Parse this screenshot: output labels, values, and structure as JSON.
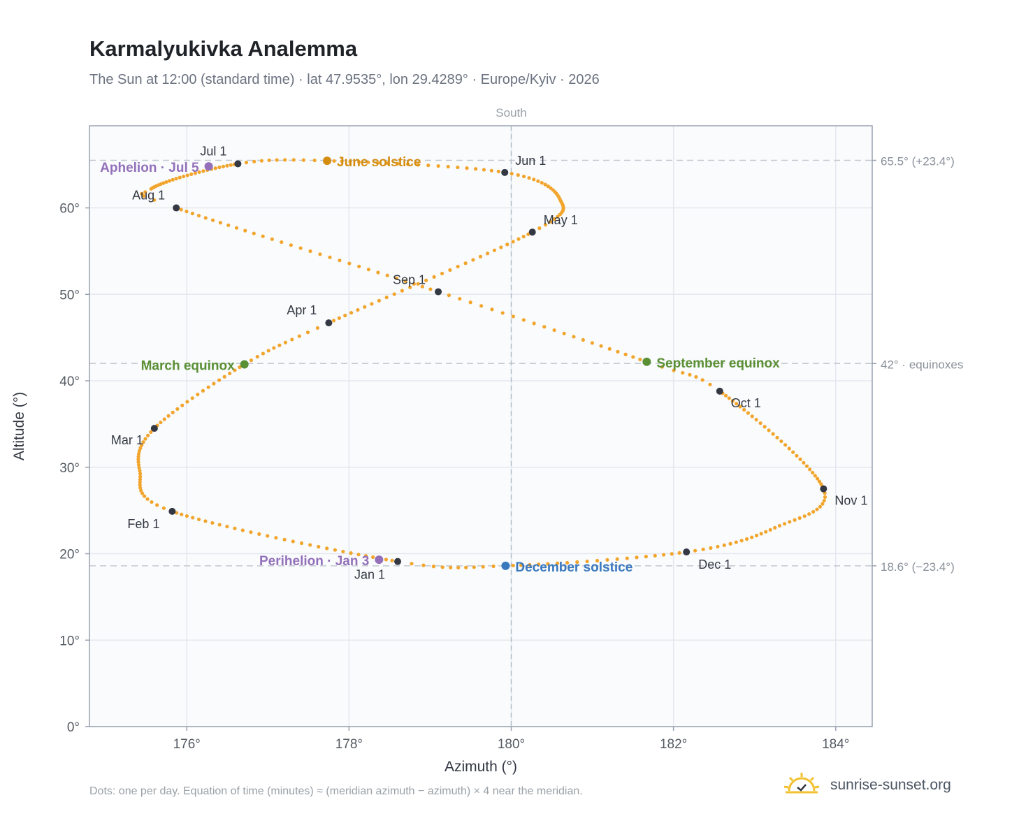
{
  "header": {
    "title": "Karmalyukivka Analemma",
    "subtitle": "The Sun at 12:00 (standard time) · lat 47.9535°, lon 29.4289° · Europe/Kyiv · 2026"
  },
  "footer": {
    "note": "Dots: one per day. Equation of time (minutes) ≈ (meridian azimuth − azimuth) × 4 near the meridian.",
    "brand": "sunrise-sunset.org"
  },
  "colors": {
    "curve": "#f2a52c",
    "month_dot": "#333842",
    "june_solstice": "#d48d10",
    "december_solstice": "#3a78be",
    "equinox": "#5a8f34",
    "apsis": "#9370b9",
    "reference_line": "#c4cad1",
    "grid": "#e4e8ee",
    "plot_background": "#f9fbfd",
    "axis_frame": "#98a2b0"
  },
  "chart_data": {
    "type": "scatter",
    "xlabel": "Azimuth (°)",
    "ylabel": "Altitude (°)",
    "xlim": [
      174.8,
      184.45
    ],
    "ylim": [
      0,
      69.5
    ],
    "x_ticks": [
      "176°",
      "178°",
      "180°",
      "182°",
      "184°"
    ],
    "x_tick_values": [
      176,
      178,
      180,
      182,
      184
    ],
    "y_ticks": [
      "0°",
      "10°",
      "20°",
      "30°",
      "40°",
      "50°",
      "60°"
    ],
    "y_tick_values": [
      0,
      10,
      20,
      30,
      40,
      50,
      60
    ],
    "grid": true,
    "top_label": "South",
    "meridian_azimuth": 180,
    "reference_lines": [
      {
        "altitude": 65.5,
        "label": "65.5° (+23.4°)"
      },
      {
        "altitude": 42,
        "label": "42° · equinoxes"
      },
      {
        "altitude": 18.6,
        "label": "18.6° (−23.4°)"
      }
    ],
    "month_markers": [
      {
        "label": "Jan 1",
        "azimuth": 178.6,
        "altitude": 19.1
      },
      {
        "label": "Feb 1",
        "azimuth": 175.82,
        "altitude": 24.9
      },
      {
        "label": "Mar 1",
        "azimuth": 175.6,
        "altitude": 34.5
      },
      {
        "label": "Apr 1",
        "azimuth": 177.75,
        "altitude": 46.7
      },
      {
        "label": "May 1",
        "azimuth": 180.26,
        "altitude": 57.2
      },
      {
        "label": "Jun 1",
        "azimuth": 179.92,
        "altitude": 64.1
      },
      {
        "label": "Jul 1",
        "azimuth": 176.63,
        "altitude": 65.1
      },
      {
        "label": "Aug 1",
        "azimuth": 175.87,
        "altitude": 60.0
      },
      {
        "label": "Sep 1",
        "azimuth": 179.1,
        "altitude": 50.3
      },
      {
        "label": "Oct 1",
        "azimuth": 182.57,
        "altitude": 38.8
      },
      {
        "label": "Nov 1",
        "azimuth": 183.85,
        "altitude": 27.5
      },
      {
        "label": "Dec 1",
        "azimuth": 182.16,
        "altitude": 20.2
      }
    ],
    "events": [
      {
        "label": "June solstice",
        "azimuth": 177.73,
        "altitude": 65.45,
        "kind": "june_solstice"
      },
      {
        "label": "December solstice",
        "azimuth": 179.93,
        "altitude": 18.6,
        "kind": "december_solstice"
      },
      {
        "label": "March equinox",
        "azimuth": 176.71,
        "altitude": 41.9,
        "kind": "equinox"
      },
      {
        "label": "September equinox",
        "azimuth": 181.67,
        "altitude": 42.2,
        "kind": "equinox"
      },
      {
        "label": "Aphelion · Jul 5",
        "azimuth": 176.27,
        "altitude": 64.8,
        "kind": "apsis"
      },
      {
        "label": "Perihelion · Jan 3",
        "azimuth": 178.37,
        "altitude": 19.3,
        "kind": "apsis"
      }
    ],
    "curve_anchors": [
      {
        "doy": 1,
        "azimuth": 178.6,
        "altitude": 19.1
      },
      {
        "doy": 32,
        "azimuth": 175.82,
        "altitude": 24.9
      },
      {
        "doy": 46,
        "azimuth": 175.42,
        "altitude": 29.6
      },
      {
        "doy": 60,
        "azimuth": 175.6,
        "altitude": 34.5
      },
      {
        "doy": 79,
        "azimuth": 176.71,
        "altitude": 41.9
      },
      {
        "doy": 91,
        "azimuth": 177.75,
        "altitude": 46.7
      },
      {
        "doy": 121,
        "azimuth": 180.26,
        "altitude": 57.2
      },
      {
        "doy": 136,
        "azimuth": 180.6,
        "altitude": 61.0
      },
      {
        "doy": 152,
        "azimuth": 179.92,
        "altitude": 64.1
      },
      {
        "doy": 172,
        "azimuth": 177.73,
        "altitude": 65.45
      },
      {
        "doy": 182,
        "azimuth": 176.63,
        "altitude": 65.1
      },
      {
        "doy": 208,
        "azimuth": 175.56,
        "altitude": 62.2
      },
      {
        "doy": 213,
        "azimuth": 175.87,
        "altitude": 60.0
      },
      {
        "doy": 244,
        "azimuth": 179.1,
        "altitude": 50.3
      },
      {
        "doy": 266,
        "azimuth": 181.67,
        "altitude": 42.2
      },
      {
        "doy": 274,
        "azimuth": 182.57,
        "altitude": 38.8
      },
      {
        "doy": 305,
        "azimuth": 183.85,
        "altitude": 27.5
      },
      {
        "doy": 320,
        "azimuth": 183.25,
        "altitude": 23.0
      },
      {
        "doy": 335,
        "azimuth": 182.16,
        "altitude": 20.2
      },
      {
        "doy": 355,
        "azimuth": 179.93,
        "altitude": 18.6
      },
      {
        "doy": 366,
        "azimuth": 178.6,
        "altitude": 19.1
      }
    ]
  }
}
